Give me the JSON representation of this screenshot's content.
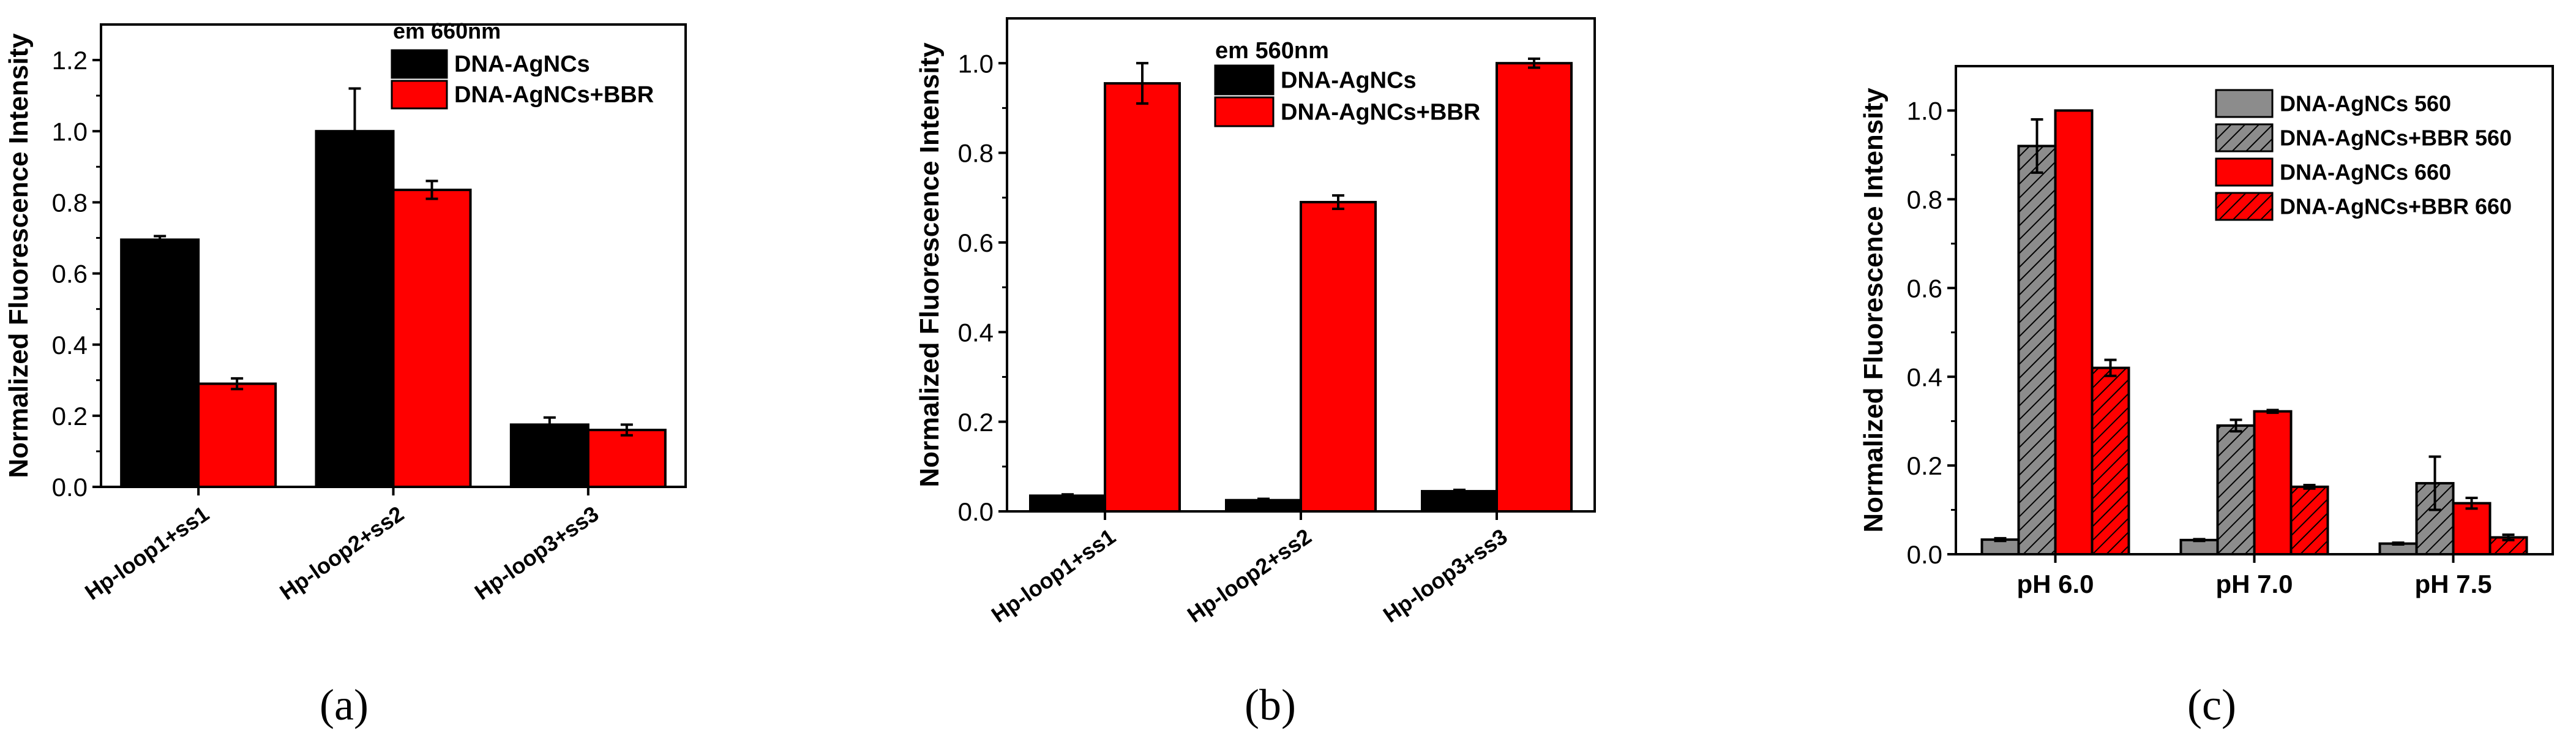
{
  "colors": {
    "black": "#000000",
    "red": "#ff0000",
    "gray": "#8c8c8c",
    "white": "#ffffff"
  },
  "chart_data": [
    {
      "panel": "(a)",
      "type": "bar",
      "title": "",
      "xlabel": "",
      "ylabel": "Normalized Fluorescence Intensity",
      "ylim": [
        0,
        1.3
      ],
      "yticks": [
        0.0,
        0.2,
        0.4,
        0.6,
        0.8,
        1.0,
        1.2
      ],
      "ytick_labels": [
        "0.0",
        "0.2",
        "0.4",
        "0.6",
        "0.8",
        "1.0",
        "1.2"
      ],
      "categories": [
        "Hp-loop1+ss1",
        "Hp-loop2+ss2",
        "Hp-loop3+ss3"
      ],
      "legend_title": "em 660nm",
      "legend_position": "top-center",
      "series": [
        {
          "name": "DNA-AgNCs",
          "color": "#000000",
          "hatch": false,
          "values": [
            0.695,
            1.0,
            0.175
          ],
          "errors": [
            0.01,
            0.12,
            0.02
          ]
        },
        {
          "name": "DNA-AgNCs+BBR",
          "color": "#ff0000",
          "hatch": false,
          "values": [
            0.29,
            0.835,
            0.16
          ],
          "errors": [
            0.015,
            0.025,
            0.015
          ]
        }
      ]
    },
    {
      "panel": "(b)",
      "type": "bar",
      "title": "",
      "xlabel": "",
      "ylabel": "Normalized Fluorescence Intensity",
      "ylim": [
        0,
        1.1
      ],
      "yticks": [
        0.0,
        0.2,
        0.4,
        0.6,
        0.8,
        1.0
      ],
      "ytick_labels": [
        "0.0",
        "0.2",
        "0.4",
        "0.6",
        "0.8",
        "1.0"
      ],
      "categories": [
        "Hp-loop1+ss1",
        "Hp-loop2+ss2",
        "Hp-loop3+ss3"
      ],
      "legend_title": "em 560nm",
      "legend_position": "top-left",
      "series": [
        {
          "name": "DNA-AgNCs",
          "color": "#000000",
          "hatch": false,
          "values": [
            0.035,
            0.025,
            0.045
          ],
          "errors": [
            0.003,
            0.003,
            0.003
          ]
        },
        {
          "name": "DNA-AgNCs+BBR",
          "color": "#ff0000",
          "hatch": false,
          "values": [
            0.955,
            0.69,
            1.0
          ],
          "errors": [
            0.045,
            0.015,
            0.01
          ]
        }
      ]
    },
    {
      "panel": "(c)",
      "type": "bar",
      "title": "",
      "xlabel": "",
      "ylabel": "Normalized Fluorescence Intensity",
      "ylim": [
        0,
        1.1
      ],
      "yticks": [
        0.0,
        0.2,
        0.4,
        0.6,
        0.8,
        1.0
      ],
      "ytick_labels": [
        "0.0",
        "0.2",
        "0.4",
        "0.6",
        "0.8",
        "1.0"
      ],
      "categories": [
        "pH 6.0",
        "pH 7.0",
        "pH 7.5"
      ],
      "legend_title": "",
      "legend_position": "top-right",
      "series": [
        {
          "name": "DNA-AgNCs 560",
          "color": "#8c8c8c",
          "hatch": false,
          "values": [
            0.033,
            0.032,
            0.024
          ],
          "errors": [
            0.003,
            0.002,
            0.002
          ]
        },
        {
          "name": "DNA-AgNCs+BBR 560",
          "color": "#8c8c8c",
          "hatch": true,
          "values": [
            0.92,
            0.29,
            0.16
          ],
          "errors": [
            0.06,
            0.013,
            0.06
          ]
        },
        {
          "name": "DNA-AgNCs 660",
          "color": "#ff0000",
          "hatch": false,
          "values": [
            1.0,
            0.322,
            0.115
          ],
          "errors": [
            0.0,
            0.003,
            0.012
          ]
        },
        {
          "name": "DNA-AgNCs+BBR 660",
          "color": "#ff0000",
          "hatch": true,
          "values": [
            0.42,
            0.152,
            0.038
          ],
          "errors": [
            0.018,
            0.004,
            0.006
          ]
        }
      ]
    }
  ]
}
